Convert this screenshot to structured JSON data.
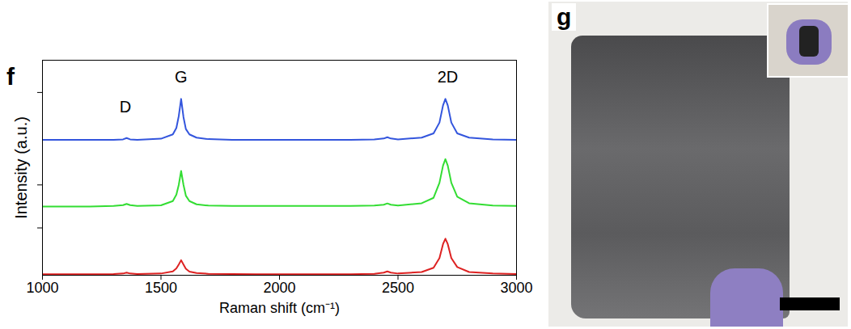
{
  "chart_data": {
    "type": "line",
    "panel_label": "f",
    "xlabel": "Raman shift (cm⁻¹)",
    "ylabel": "Intensity (a.u.)",
    "xlim": [
      1000,
      3000
    ],
    "xticks": [
      1000,
      1500,
      2000,
      2500,
      3000
    ],
    "ylim": [
      0,
      10
    ],
    "yticks": [
      2.2,
      4.2,
      8.5
    ],
    "tick_labels": "x",
    "grid": false,
    "x": [
      1000,
      1100,
      1200,
      1300,
      1340,
      1355,
      1370,
      1400,
      1500,
      1550,
      1565,
      1575,
      1585,
      1595,
      1605,
      1620,
      1650,
      1700,
      1800,
      1900,
      2000,
      2100,
      2200,
      2300,
      2400,
      2440,
      2455,
      2470,
      2500,
      2600,
      2650,
      2675,
      2690,
      2700,
      2710,
      2725,
      2750,
      2800,
      2900,
      3000
    ],
    "series": [
      {
        "color": "#3355dd",
        "values": [
          6.3,
          6.3,
          6.3,
          6.3,
          6.32,
          6.38,
          6.32,
          6.3,
          6.35,
          6.55,
          6.85,
          7.4,
          8.2,
          7.35,
          6.8,
          6.55,
          6.4,
          6.33,
          6.3,
          6.3,
          6.3,
          6.3,
          6.3,
          6.3,
          6.32,
          6.36,
          6.42,
          6.36,
          6.32,
          6.4,
          6.6,
          7.1,
          7.9,
          8.2,
          7.9,
          7.1,
          6.6,
          6.4,
          6.32,
          6.3
        ]
      },
      {
        "color": "#33dd33",
        "values": [
          3.2,
          3.2,
          3.2,
          3.22,
          3.26,
          3.32,
          3.26,
          3.22,
          3.25,
          3.45,
          3.75,
          4.2,
          4.85,
          4.2,
          3.7,
          3.45,
          3.3,
          3.24,
          3.22,
          3.22,
          3.22,
          3.22,
          3.22,
          3.22,
          3.24,
          3.28,
          3.34,
          3.28,
          3.24,
          3.35,
          3.6,
          4.3,
          5.1,
          5.4,
          5.1,
          4.3,
          3.65,
          3.35,
          3.24,
          3.22
        ]
      },
      {
        "color": "#dd2222",
        "values": [
          0.05,
          0.05,
          0.05,
          0.06,
          0.08,
          0.12,
          0.08,
          0.06,
          0.08,
          0.18,
          0.32,
          0.5,
          0.7,
          0.5,
          0.3,
          0.17,
          0.1,
          0.07,
          0.06,
          0.05,
          0.05,
          0.05,
          0.05,
          0.05,
          0.07,
          0.12,
          0.18,
          0.12,
          0.08,
          0.15,
          0.35,
          0.8,
          1.45,
          1.7,
          1.45,
          0.8,
          0.38,
          0.15,
          0.08,
          0.06
        ]
      }
    ],
    "annotations": [
      {
        "text": "D",
        "x": 1350,
        "y": 7.8
      },
      {
        "text": "G",
        "x": 1585,
        "y": 9.2
      },
      {
        "text": "2D",
        "x": 2710,
        "y": 9.2
      }
    ]
  },
  "photo": {
    "panel_label": "g"
  }
}
